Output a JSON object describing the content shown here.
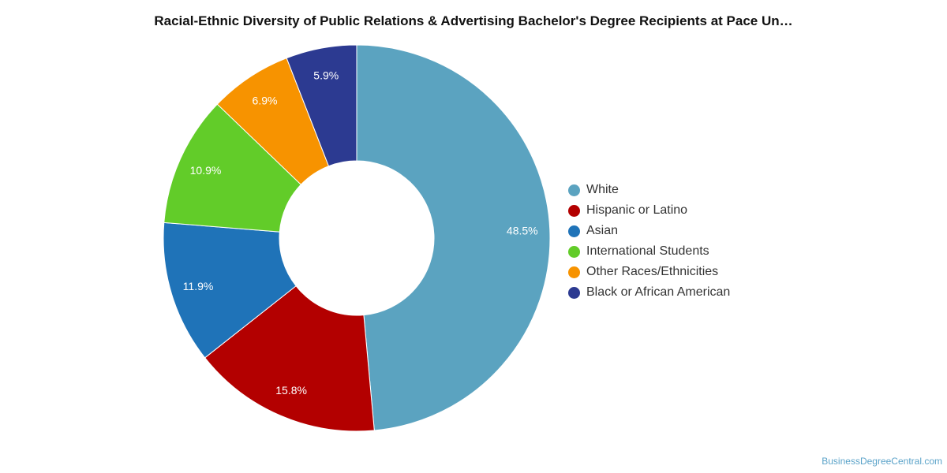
{
  "chart_data": {
    "type": "pie",
    "title": "Racial-Ethnic Diversity of Public Relations & Advertising Bachelor's Degree Recipients at Pace Un…",
    "donut": true,
    "legend_position": "right",
    "start_angle_deg": 0,
    "categories": [
      "White",
      "Hispanic or Latino",
      "Asian",
      "International Students",
      "Other Races/Ethnicities",
      "Black or African American"
    ],
    "values": [
      48.5,
      15.8,
      11.9,
      10.9,
      6.9,
      5.9
    ],
    "labels": [
      "48.5%",
      "15.8%",
      "11.9%",
      "10.9%",
      "6.9%",
      "5.9%"
    ],
    "colors": [
      "#5ba3c0",
      "#b30000",
      "#1f73b8",
      "#62cc29",
      "#f79300",
      "#2c3a91"
    ]
  },
  "credit": "BusinessDegreeCentral.com"
}
